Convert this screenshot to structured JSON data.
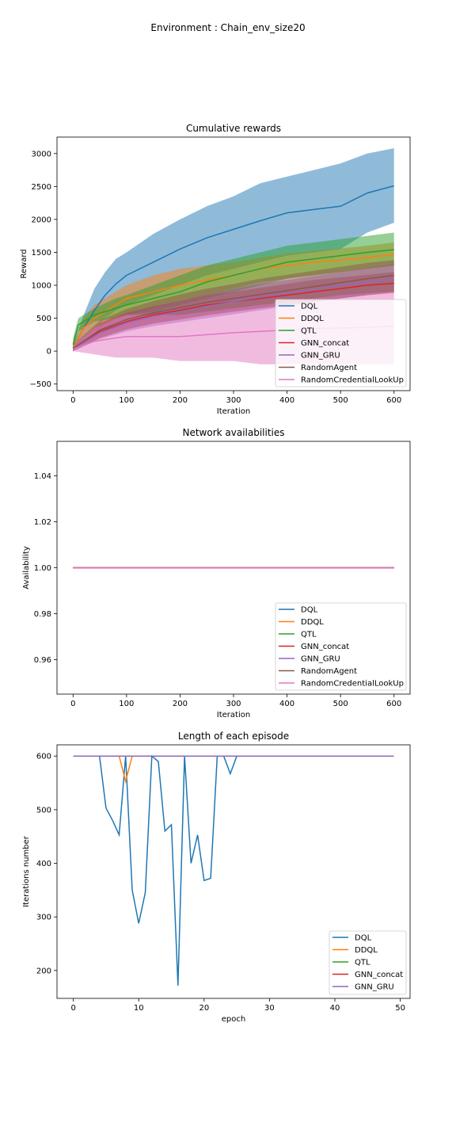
{
  "suptitle": "Environment : Chain_env_size20",
  "colors": {
    "DQL": "#1f77b4",
    "DDQL": "#ff7f0e",
    "QTL": "#2ca02c",
    "GNN_concat": "#d62728",
    "GNN_GRU": "#9467bd",
    "RandomAgent": "#8c564b",
    "RandomCredentialLookUp": "#e377c2"
  },
  "chart_data": [
    {
      "type": "line",
      "title": "Cumulative rewards",
      "xlabel": "Iteration",
      "ylabel": "Reward",
      "xlim": [
        -30,
        630
      ],
      "ylim": [
        -600,
        3250
      ],
      "xticks": [
        0,
        100,
        200,
        300,
        400,
        500,
        600
      ],
      "yticks": [
        -500,
        0,
        500,
        1000,
        1500,
        2000,
        2500,
        3000
      ],
      "legend": "lower-right",
      "series": [
        {
          "name": "DQL",
          "x": [
            0,
            20,
            40,
            60,
            80,
            100,
            150,
            200,
            250,
            300,
            350,
            400,
            450,
            500,
            550,
            600
          ],
          "y": [
            50,
            350,
            620,
            850,
            1020,
            1150,
            1350,
            1550,
            1720,
            1850,
            1980,
            2100,
            2150,
            2200,
            2400,
            2510
          ],
          "lower": [
            0,
            200,
            350,
            500,
            620,
            700,
            850,
            1000,
            1150,
            1250,
            1350,
            1450,
            1500,
            1550,
            1800,
            1950
          ],
          "upper": [
            100,
            550,
            950,
            1200,
            1400,
            1500,
            1780,
            2000,
            2200,
            2350,
            2550,
            2650,
            2750,
            2850,
            3000,
            3080
          ]
        },
        {
          "name": "DDQL",
          "x": [
            0,
            20,
            40,
            60,
            80,
            100,
            150,
            200,
            250,
            300,
            350,
            400,
            450,
            500,
            550,
            600
          ],
          "y": [
            40,
            350,
            500,
            600,
            700,
            800,
            900,
            1000,
            1080,
            1150,
            1250,
            1300,
            1350,
            1380,
            1420,
            1470
          ],
          "lower": [
            0,
            200,
            300,
            400,
            480,
            550,
            650,
            750,
            850,
            950,
            1050,
            1100,
            1150,
            1200,
            1250,
            1300
          ],
          "upper": [
            100,
            500,
            700,
            800,
            900,
            1000,
            1150,
            1250,
            1300,
            1350,
            1420,
            1480,
            1520,
            1560,
            1600,
            1650
          ]
        },
        {
          "name": "QTL",
          "x": [
            0,
            10,
            40,
            80,
            100,
            150,
            200,
            250,
            300,
            350,
            400,
            450,
            500,
            550,
            600
          ],
          "y": [
            100,
            400,
            550,
            650,
            700,
            800,
            900,
            1050,
            1150,
            1250,
            1350,
            1400,
            1450,
            1500,
            1540
          ],
          "lower": [
            0,
            300,
            450,
            500,
            550,
            600,
            700,
            800,
            900,
            1000,
            1100,
            1150,
            1200,
            1250,
            1300
          ],
          "upper": [
            200,
            500,
            650,
            800,
            850,
            1000,
            1150,
            1300,
            1400,
            1500,
            1600,
            1650,
            1700,
            1750,
            1800
          ]
        },
        {
          "name": "GNN_concat",
          "x": [
            0,
            50,
            100,
            150,
            200,
            250,
            300,
            350,
            400,
            450,
            500,
            550,
            600
          ],
          "y": [
            30,
            300,
            450,
            550,
            620,
            700,
            750,
            800,
            850,
            900,
            950,
            1000,
            1030
          ],
          "lower": [
            0,
            200,
            330,
            420,
            480,
            550,
            600,
            650,
            700,
            750,
            800,
            850,
            880
          ],
          "upper": [
            80,
            420,
            580,
            680,
            760,
            850,
            900,
            960,
            1020,
            1080,
            1120,
            1160,
            1200
          ]
        },
        {
          "name": "GNN_GRU",
          "x": [
            0,
            50,
            100,
            150,
            200,
            250,
            300,
            350,
            400,
            450,
            500,
            550,
            600
          ],
          "y": [
            30,
            280,
            430,
            530,
            600,
            680,
            750,
            820,
            880,
            940,
            1000,
            1050,
            1100
          ],
          "lower": [
            0,
            180,
            300,
            380,
            440,
            500,
            560,
            620,
            680,
            740,
            800,
            850,
            900
          ],
          "upper": [
            80,
            400,
            560,
            680,
            760,
            860,
            940,
            1020,
            1080,
            1140,
            1200,
            1260,
            1320
          ]
        },
        {
          "name": "RandomAgent",
          "x": [
            0,
            50,
            100,
            150,
            200,
            250,
            300,
            350,
            400,
            450,
            500,
            550,
            600
          ],
          "y": [
            40,
            320,
            480,
            580,
            660,
            740,
            800,
            860,
            920,
            980,
            1040,
            1100,
            1150
          ],
          "lower": [
            0,
            200,
            330,
            420,
            480,
            540,
            600,
            650,
            700,
            750,
            800,
            850,
            900
          ],
          "upper": [
            100,
            460,
            640,
            760,
            860,
            950,
            1020,
            1100,
            1160,
            1220,
            1280,
            1340,
            1380
          ]
        },
        {
          "name": "RandomCredentialLookUp",
          "x": [
            0,
            40,
            80,
            100,
            150,
            200,
            250,
            300,
            350,
            400,
            450,
            500,
            550,
            600
          ],
          "y": [
            30,
            150,
            200,
            220,
            220,
            220,
            250,
            280,
            300,
            320,
            340,
            350,
            360,
            380
          ],
          "lower": [
            0,
            -50,
            -100,
            -100,
            -100,
            -150,
            -150,
            -150,
            -200,
            -200,
            -200,
            -200,
            -200,
            -200
          ],
          "upper": [
            100,
            350,
            500,
            550,
            550,
            550,
            600,
            650,
            700,
            750,
            800,
            850,
            880,
            900
          ]
        }
      ]
    },
    {
      "type": "line",
      "title": "Network availabilities",
      "xlabel": "Iteration",
      "ylabel": "Availability",
      "xlim": [
        -30,
        630
      ],
      "ylim": [
        0.945,
        1.055
      ],
      "xticks": [
        0,
        100,
        200,
        300,
        400,
        500,
        600
      ],
      "yticks": [
        0.96,
        0.98,
        1.0,
        1.02,
        1.04
      ],
      "ytick_labels": [
        "0.96",
        "0.98",
        "1.00",
        "1.02",
        "1.04"
      ],
      "legend": "lower-right",
      "series": [
        {
          "name": "DQL",
          "x": [
            0,
            600
          ],
          "y": [
            1.0,
            1.0
          ]
        },
        {
          "name": "DDQL",
          "x": [
            0,
            600
          ],
          "y": [
            1.0,
            1.0
          ]
        },
        {
          "name": "QTL",
          "x": [
            0,
            600
          ],
          "y": [
            1.0,
            1.0
          ]
        },
        {
          "name": "GNN_concat",
          "x": [
            0,
            600
          ],
          "y": [
            1.0,
            1.0
          ]
        },
        {
          "name": "GNN_GRU",
          "x": [
            0,
            600
          ],
          "y": [
            1.0,
            1.0
          ]
        },
        {
          "name": "RandomAgent",
          "x": [
            0,
            600
          ],
          "y": [
            1.0,
            1.0
          ]
        },
        {
          "name": "RandomCredentialLookUp",
          "x": [
            0,
            600
          ],
          "y": [
            1.0,
            1.0
          ]
        }
      ]
    },
    {
      "type": "line",
      "title": "Length of each episode",
      "xlabel": "epoch",
      "ylabel": "Iterations number",
      "xlim": [
        -2.5,
        51.5
      ],
      "ylim": [
        148,
        621
      ],
      "xticks": [
        0,
        10,
        20,
        30,
        40,
        50
      ],
      "yticks": [
        200,
        300,
        400,
        500,
        600
      ],
      "legend": "lower-right",
      "series": [
        {
          "name": "DQL",
          "x": [
            0,
            1,
            2,
            3,
            4,
            5,
            6,
            7,
            8,
            9,
            10,
            11,
            12,
            13,
            14,
            15,
            16,
            17,
            18,
            19,
            20,
            21,
            22,
            23,
            24,
            25,
            26,
            27,
            28,
            29,
            30,
            31,
            32,
            33,
            34,
            35,
            36,
            37,
            38,
            39,
            40,
            41,
            42,
            43,
            44,
            45,
            46,
            47,
            48,
            49
          ],
          "y": [
            600,
            600,
            600,
            600,
            600,
            503,
            480,
            453,
            600,
            350,
            288,
            345,
            600,
            590,
            460,
            472,
            172,
            600,
            400,
            453,
            368,
            372,
            600,
            600,
            567,
            600,
            600,
            600,
            600,
            600,
            600,
            600,
            600,
            600,
            600,
            600,
            600,
            600,
            600,
            600,
            600,
            600,
            600,
            600,
            600,
            600,
            600,
            600,
            600,
            600
          ]
        },
        {
          "name": "DDQL",
          "x": [
            0,
            1,
            2,
            3,
            4,
            5,
            6,
            7,
            8,
            9,
            10,
            49
          ],
          "y": [
            600,
            600,
            600,
            600,
            600,
            600,
            600,
            600,
            553,
            600,
            600,
            600
          ]
        },
        {
          "name": "QTL",
          "x": [
            0,
            49
          ],
          "y": [
            600,
            600
          ]
        },
        {
          "name": "GNN_concat",
          "x": [
            0,
            49
          ],
          "y": [
            600,
            600
          ]
        },
        {
          "name": "GNN_GRU",
          "x": [
            0,
            49
          ],
          "y": [
            600,
            600
          ]
        }
      ]
    }
  ]
}
